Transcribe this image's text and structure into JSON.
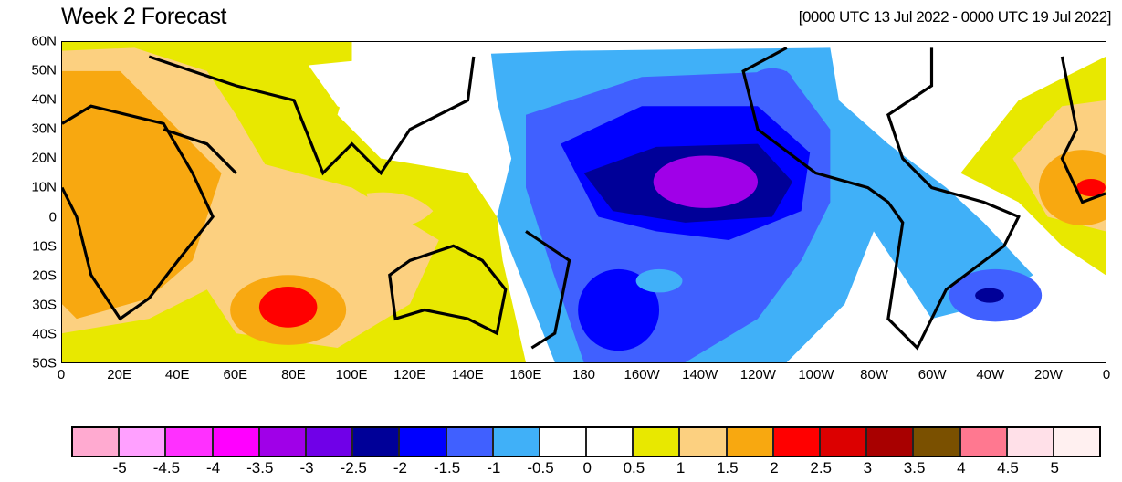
{
  "title": "Week 2 Forecast",
  "date_range": "[0000 UTC 13 Jul 2022 - 0000 UTC 19 Jul 2022]",
  "lat_labels": [
    "60N",
    "50N",
    "40N",
    "30N",
    "20N",
    "10N",
    "0",
    "10S",
    "20S",
    "30S",
    "40S",
    "50S"
  ],
  "lon_labels": [
    "0",
    "20E",
    "40E",
    "60E",
    "80E",
    "100E",
    "120E",
    "140E",
    "160E",
    "180",
    "160W",
    "140W",
    "120W",
    "100W",
    "80W",
    "60W",
    "40W",
    "20W",
    "0"
  ],
  "colorbar": {
    "colors": [
      "#ffaad0",
      "#ffa0ff",
      "#ff30ff",
      "#ff00ff",
      "#a000e8",
      "#7000e8",
      "#000098",
      "#0000ff",
      "#4060ff",
      "#40b0f8",
      "#ffffff",
      "#ffffff",
      "#e8e800",
      "#fcd080",
      "#f8a810",
      "#ff0000",
      "#dc0000",
      "#a80000",
      "#7a5000",
      "#ff7890",
      "#ffe0e8",
      "#fff0f0"
    ],
    "labels": [
      "-5",
      "-4.5",
      "-4",
      "-3.5",
      "-3",
      "-2.5",
      "-2",
      "-1.5",
      "-1",
      "-0.5",
      "0",
      "0.5",
      "1",
      "1.5",
      "2",
      "2.5",
      "3",
      "3.5",
      "4",
      "4.5",
      "5"
    ]
  }
}
